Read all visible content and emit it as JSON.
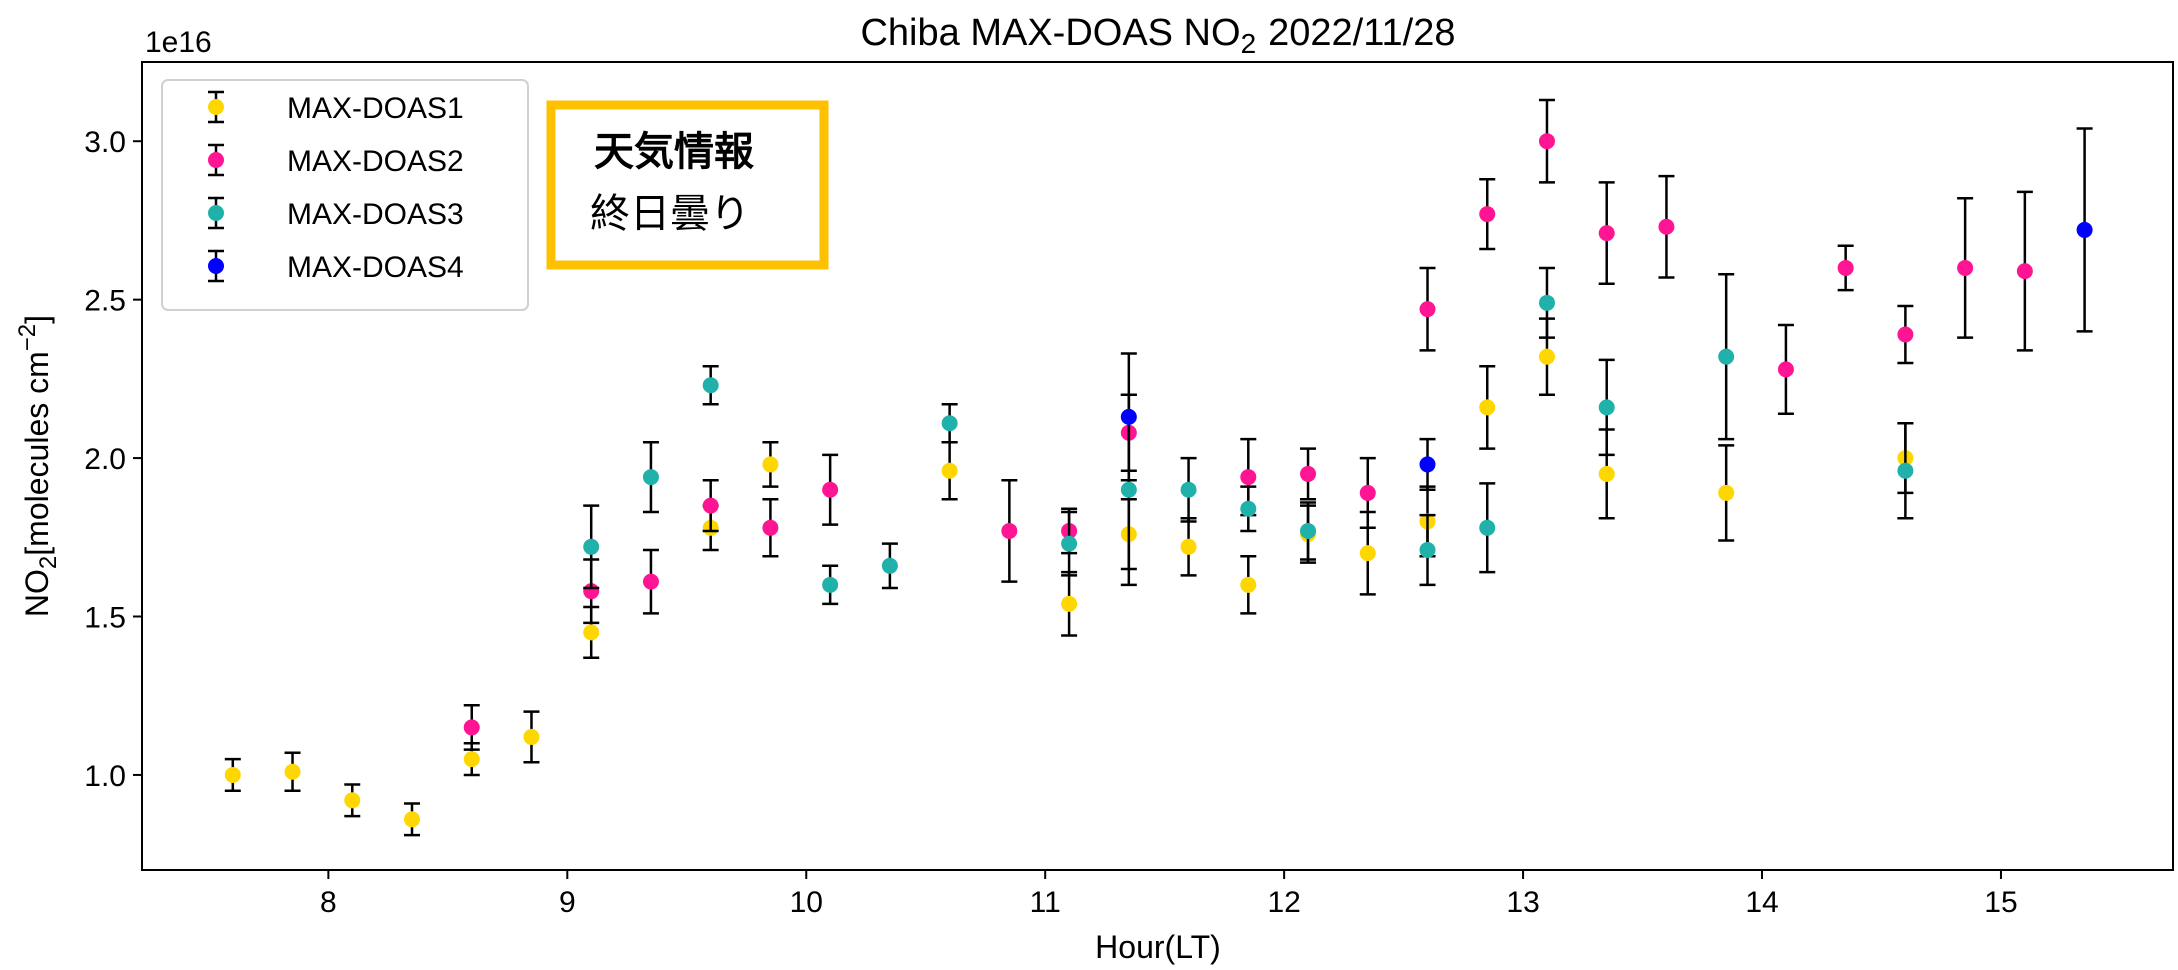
{
  "chart_data": {
    "type": "scatter",
    "title_main": "Chiba MAX-DOAS NO",
    "title_sub": "2",
    "title_date": "2022/11/28",
    "xlabel": "Hour(LT)",
    "ylabel_main": "NO",
    "ylabel_sub": "2",
    "ylabel_unit": "[molecules cm",
    "ylabel_exp": "−2",
    "ylabel_end": "]",
    "y_multiplier": "1e16",
    "xlim": [
      7.22,
      15.72
    ],
    "ylim": [
      0.7,
      3.25
    ],
    "x_ticks": [
      8,
      9,
      10,
      11,
      12,
      13,
      14,
      15
    ],
    "x_tick_labels": [
      "8",
      "9",
      "10",
      "11",
      "12",
      "13",
      "14",
      "15"
    ],
    "y_ticks": [
      1.0,
      1.5,
      2.0,
      2.5,
      3.0
    ],
    "y_tick_labels": [
      "1.0",
      "1.5",
      "2.0",
      "2.5",
      "3.0"
    ],
    "grid": false,
    "legend_position": "top-left",
    "series": [
      {
        "name": "MAX-DOAS1",
        "color": "#FFD700",
        "points": [
          {
            "x": 7.6,
            "y": 1.0,
            "err": 0.05
          },
          {
            "x": 7.85,
            "y": 1.01,
            "err": 0.06
          },
          {
            "x": 8.1,
            "y": 0.92,
            "err": 0.05
          },
          {
            "x": 8.35,
            "y": 0.86,
            "err": 0.05
          },
          {
            "x": 8.6,
            "y": 1.05,
            "err": 0.05
          },
          {
            "x": 8.85,
            "y": 1.12,
            "err": 0.08
          },
          {
            "x": 9.1,
            "y": 1.45,
            "err": 0.08
          },
          {
            "x": 9.6,
            "y": 1.78,
            "err": 0.07
          },
          {
            "x": 9.85,
            "y": 1.98,
            "err": 0.07
          },
          {
            "x": 10.6,
            "y": 1.96,
            "err": 0.09
          },
          {
            "x": 11.1,
            "y": 1.54,
            "err": 0.1
          },
          {
            "x": 11.35,
            "y": 1.76,
            "err": 0.11
          },
          {
            "x": 11.6,
            "y": 1.72,
            "err": 0.09
          },
          {
            "x": 11.85,
            "y": 1.6,
            "err": 0.09
          },
          {
            "x": 12.1,
            "y": 1.76,
            "err": 0.09
          },
          {
            "x": 12.35,
            "y": 1.7,
            "err": 0.13
          },
          {
            "x": 12.6,
            "y": 1.8,
            "err": 0.11
          },
          {
            "x": 12.85,
            "y": 2.16,
            "err": 0.13
          },
          {
            "x": 13.1,
            "y": 2.32,
            "err": 0.12
          },
          {
            "x": 13.35,
            "y": 1.95,
            "err": 0.14
          },
          {
            "x": 13.85,
            "y": 1.89,
            "err": 0.15
          },
          {
            "x": 14.6,
            "y": 2.0,
            "err": 0.11
          }
        ]
      },
      {
        "name": "MAX-DOAS2",
        "color": "#FF1493",
        "points": [
          {
            "x": 8.6,
            "y": 1.15,
            "err": 0.07
          },
          {
            "x": 9.1,
            "y": 1.58,
            "err": 0.1
          },
          {
            "x": 9.35,
            "y": 1.61,
            "err": 0.1
          },
          {
            "x": 9.6,
            "y": 1.85,
            "err": 0.08
          },
          {
            "x": 9.85,
            "y": 1.78,
            "err": 0.09
          },
          {
            "x": 10.1,
            "y": 1.9,
            "err": 0.11
          },
          {
            "x": 10.85,
            "y": 1.77,
            "err": 0.16
          },
          {
            "x": 11.1,
            "y": 1.77,
            "err": 0.07
          },
          {
            "x": 11.35,
            "y": 2.08,
            "err": 0.12
          },
          {
            "x": 11.85,
            "y": 1.94,
            "err": 0.12
          },
          {
            "x": 12.1,
            "y": 1.95,
            "err": 0.08
          },
          {
            "x": 12.35,
            "y": 1.89,
            "err": 0.11
          },
          {
            "x": 12.6,
            "y": 2.47,
            "err": 0.13
          },
          {
            "x": 12.85,
            "y": 2.77,
            "err": 0.11
          },
          {
            "x": 13.1,
            "y": 3.0,
            "err": 0.13
          },
          {
            "x": 13.35,
            "y": 2.71,
            "err": 0.16
          },
          {
            "x": 13.6,
            "y": 2.73,
            "err": 0.16
          },
          {
            "x": 14.1,
            "y": 2.28,
            "err": 0.14
          },
          {
            "x": 14.35,
            "y": 2.6,
            "err": 0.07
          },
          {
            "x": 14.6,
            "y": 2.39,
            "err": 0.09
          },
          {
            "x": 14.85,
            "y": 2.6,
            "err": 0.22
          },
          {
            "x": 15.1,
            "y": 2.59,
            "err": 0.25
          }
        ]
      },
      {
        "name": "MAX-DOAS3",
        "color": "#20B2AA",
        "points": [
          {
            "x": 9.1,
            "y": 1.72,
            "err": 0.13
          },
          {
            "x": 9.35,
            "y": 1.94,
            "err": 0.11
          },
          {
            "x": 9.6,
            "y": 2.23,
            "err": 0.06
          },
          {
            "x": 10.1,
            "y": 1.6,
            "err": 0.06
          },
          {
            "x": 10.35,
            "y": 1.66,
            "err": 0.07
          },
          {
            "x": 10.6,
            "y": 2.11,
            "err": 0.06
          },
          {
            "x": 11.1,
            "y": 1.73,
            "err": 0.1
          },
          {
            "x": 11.35,
            "y": 1.9,
            "err": 0.3
          },
          {
            "x": 11.6,
            "y": 1.9,
            "err": 0.1
          },
          {
            "x": 11.85,
            "y": 1.84,
            "err": 0.07
          },
          {
            "x": 12.1,
            "y": 1.77,
            "err": 0.09
          },
          {
            "x": 12.6,
            "y": 1.71,
            "err": 0.11
          },
          {
            "x": 12.85,
            "y": 1.78,
            "err": 0.14
          },
          {
            "x": 13.1,
            "y": 2.49,
            "err": 0.11
          },
          {
            "x": 13.35,
            "y": 2.16,
            "err": 0.15
          },
          {
            "x": 13.85,
            "y": 2.32,
            "err": 0.26
          },
          {
            "x": 14.6,
            "y": 1.96,
            "err": 0.15
          }
        ]
      },
      {
        "name": "MAX-DOAS4",
        "color": "#0000FF",
        "points": [
          {
            "x": 11.35,
            "y": 2.13,
            "err": 0.2
          },
          {
            "x": 12.6,
            "y": 1.98,
            "err": 0.08
          },
          {
            "x": 15.35,
            "y": 2.72,
            "err": 0.32
          }
        ]
      }
    ]
  },
  "weather_box": {
    "title": "天気情報",
    "text": "終日曇り",
    "border_color": "#FFC000"
  }
}
